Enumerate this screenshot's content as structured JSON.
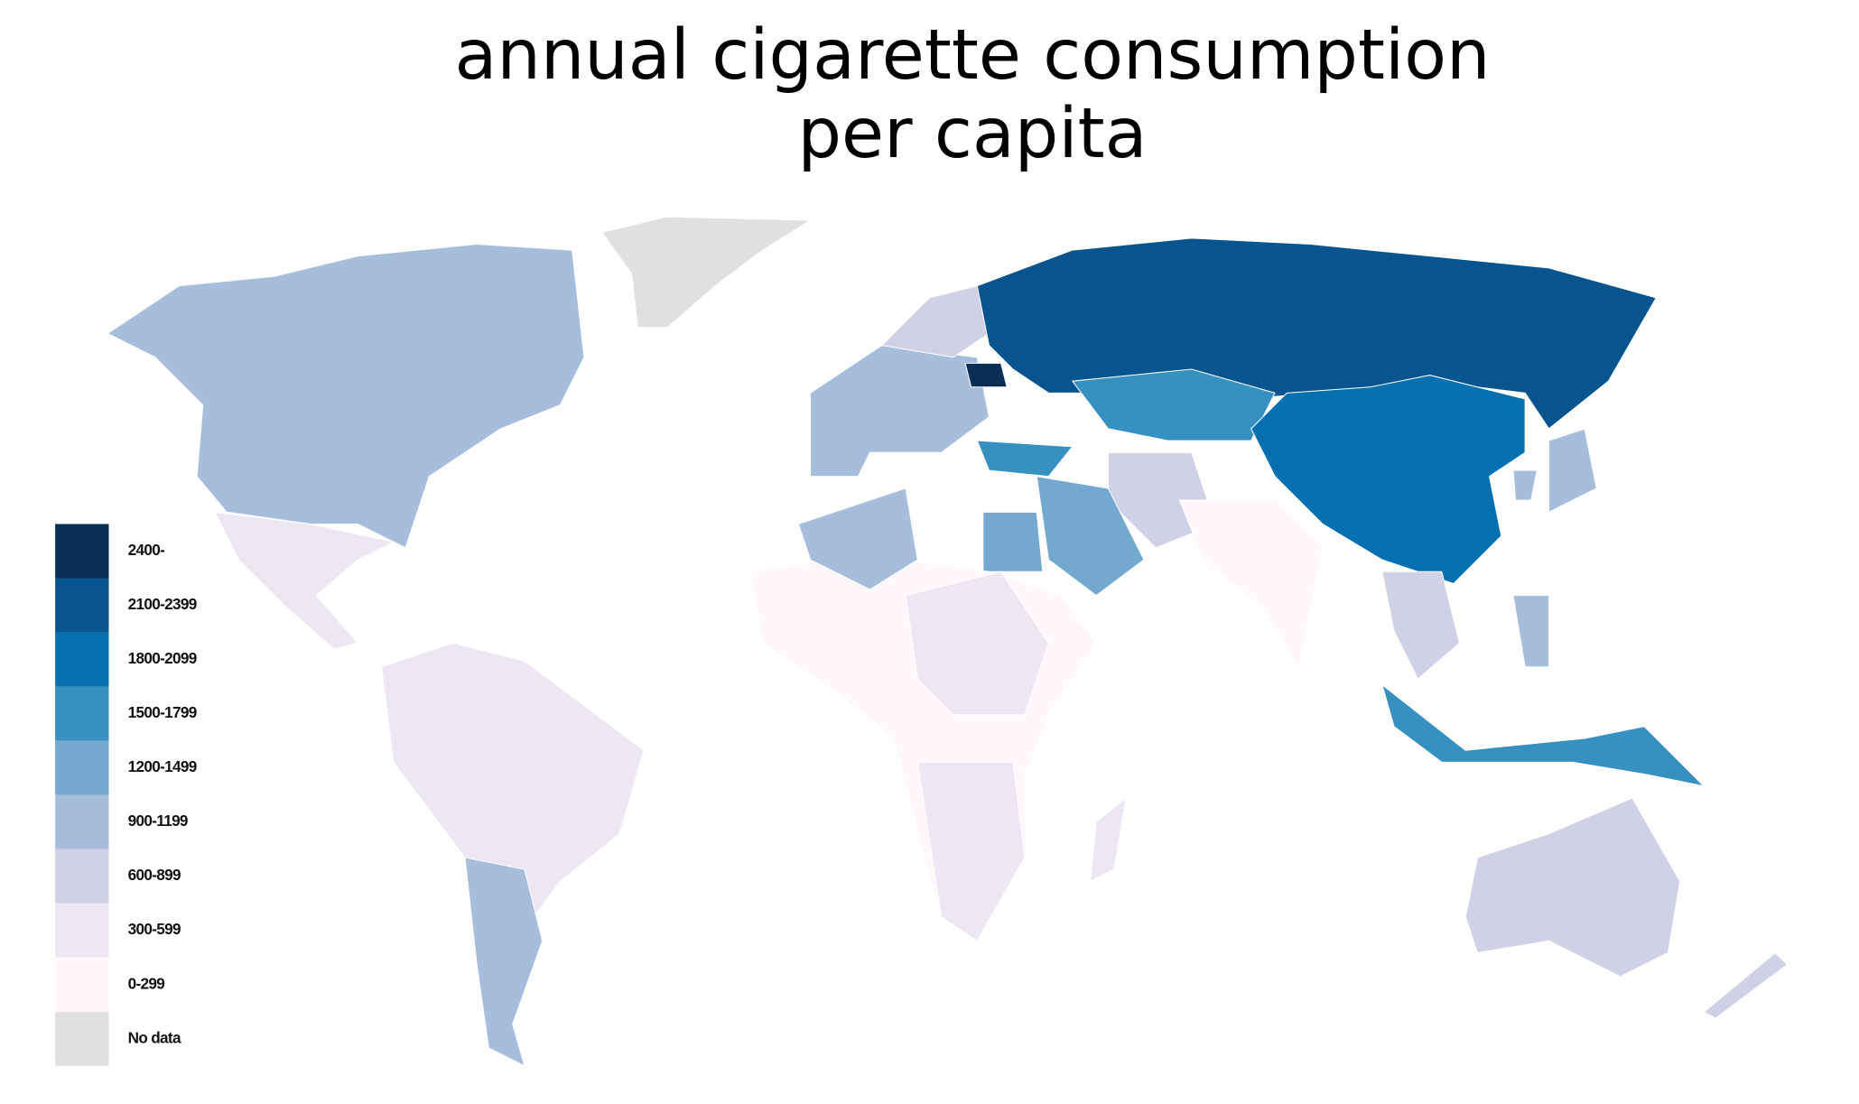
{
  "title_lines": [
    "annual cigarette consumption",
    "per capita"
  ],
  "legend": [
    {
      "label": "2400-",
      "color": "#0b2f54"
    },
    {
      "label": "2100-2399",
      "color": "#08548e"
    },
    {
      "label": "1800-2099",
      "color": "#0570b0"
    },
    {
      "label": "1500-1799",
      "color": "#3690c0"
    },
    {
      "label": "1200-1499",
      "color": "#74a9cf"
    },
    {
      "label": "900-1199",
      "color": "#a6bddb"
    },
    {
      "label": "600-899",
      "color": "#d0d1e6"
    },
    {
      "label": "300-599",
      "color": "#ece7f2"
    },
    {
      "label": "0-299",
      "color": "#fff7fb"
    },
    {
      "label": "No data",
      "color": "#e0e0e0"
    }
  ]
}
